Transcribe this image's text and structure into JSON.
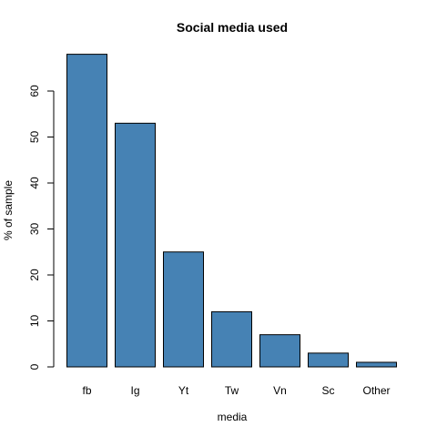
{
  "chart_data": {
    "type": "bar",
    "title": "Social media used",
    "xlabel": "media",
    "ylabel": "% of sample",
    "categories": [
      "fb",
      "Ig",
      "Yt",
      "Tw",
      "Vn",
      "Sc",
      "Other"
    ],
    "values": [
      68,
      53,
      25,
      12,
      7,
      3,
      1
    ],
    "ylim": [
      0,
      68
    ],
    "yticks": [
      0,
      10,
      20,
      30,
      40,
      50,
      60
    ],
    "bar_color": "#4682B4",
    "grid": false,
    "legend": "none"
  }
}
